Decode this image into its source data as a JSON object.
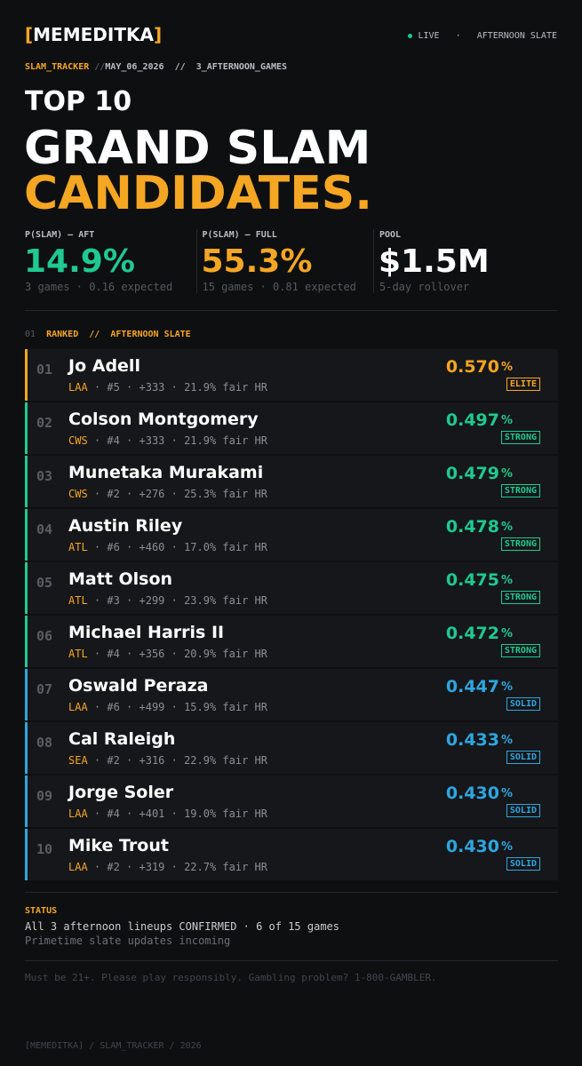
{
  "header": {
    "logo": {
      "open": "[",
      "name": "MEMEDITKA",
      "close": "]"
    },
    "live": "LIVE",
    "sep": "·",
    "slate": "AFTERNOON SLATE"
  },
  "breadcrumb": {
    "app": "SLAM_TRACKER",
    "sep": "//",
    "date": "MAY_06_2026",
    "sep2": "//",
    "games": "3_AFTERNOON_GAMES"
  },
  "headline": {
    "kicker": "TOP 10",
    "line1": "GRAND SLAM",
    "line2": "CANDIDATES."
  },
  "stats": [
    {
      "label": "P(SLAM) — AFT",
      "value": "14.9%",
      "sub": "3 games · 0.16 expected",
      "color": "#1fc98f"
    },
    {
      "label": "P(SLAM) — FULL",
      "value": "55.3%",
      "sub": "15 games · 0.81 expected",
      "color": "#f5a623"
    },
    {
      "label": "POOL",
      "value": "$1.5M",
      "sub": "5-day rollover",
      "color": "#ffffff"
    }
  ],
  "section": {
    "num": "01",
    "title": "RANKED",
    "sep": "//",
    "slate": "AFTERNOON SLATE"
  },
  "rows": [
    {
      "rank": "01",
      "name": "Jo Adell",
      "team": "LAA",
      "meta": "· #5 · +333 · 21.9% fair HR",
      "prob": "0.570",
      "unit": "%",
      "tier": "ELITE",
      "color": "#f5a623"
    },
    {
      "rank": "02",
      "name": "Colson Montgomery",
      "team": "CWS",
      "meta": "· #4 · +333 · 21.9% fair HR",
      "prob": "0.497",
      "unit": "%",
      "tier": "STRONG",
      "color": "#1fc98f"
    },
    {
      "rank": "03",
      "name": "Munetaka Murakami",
      "team": "CWS",
      "meta": "· #2 · +276 · 25.3% fair HR",
      "prob": "0.479",
      "unit": "%",
      "tier": "STRONG",
      "color": "#1fc98f"
    },
    {
      "rank": "04",
      "name": "Austin Riley",
      "team": "ATL",
      "meta": "· #6 · +460 · 17.0% fair HR",
      "prob": "0.478",
      "unit": "%",
      "tier": "STRONG",
      "color": "#1fc98f"
    },
    {
      "rank": "05",
      "name": "Matt Olson",
      "team": "ATL",
      "meta": "· #3 · +299 · 23.9% fair HR",
      "prob": "0.475",
      "unit": "%",
      "tier": "STRONG",
      "color": "#1fc98f"
    },
    {
      "rank": "06",
      "name": "Michael Harris II",
      "team": "ATL",
      "meta": "· #4 · +356 · 20.9% fair HR",
      "prob": "0.472",
      "unit": "%",
      "tier": "STRONG",
      "color": "#1fc98f"
    },
    {
      "rank": "07",
      "name": "Oswald Peraza",
      "team": "LAA",
      "meta": "· #6 · +499 · 15.9% fair HR",
      "prob": "0.447",
      "unit": "%",
      "tier": "SOLID",
      "color": "#2ea6e0"
    },
    {
      "rank": "08",
      "name": "Cal Raleigh",
      "team": "SEA",
      "meta": "· #2 · +316 · 22.9% fair HR",
      "prob": "0.433",
      "unit": "%",
      "tier": "SOLID",
      "color": "#2ea6e0"
    },
    {
      "rank": "09",
      "name": "Jorge Soler",
      "team": "LAA",
      "meta": "· #4 · +401 · 19.0% fair HR",
      "prob": "0.430",
      "unit": "%",
      "tier": "SOLID",
      "color": "#2ea6e0"
    },
    {
      "rank": "10",
      "name": "Mike Trout",
      "team": "LAA",
      "meta": "· #2 · +319 · 22.7% fair HR",
      "prob": "0.430",
      "unit": "%",
      "tier": "SOLID",
      "color": "#2ea6e0"
    }
  ],
  "status": {
    "label": "STATUS",
    "line1": "All 3 afternoon lineups CONFIRMED · 6 of 15 games",
    "line2": "Primetime slate updates incoming"
  },
  "disclaimer": "Must be 21+. Please play responsibly. Gambling problem? 1-800-GAMBLER.",
  "footer": "[MEMEDITKA] / SLAM_TRACKER / 2026"
}
